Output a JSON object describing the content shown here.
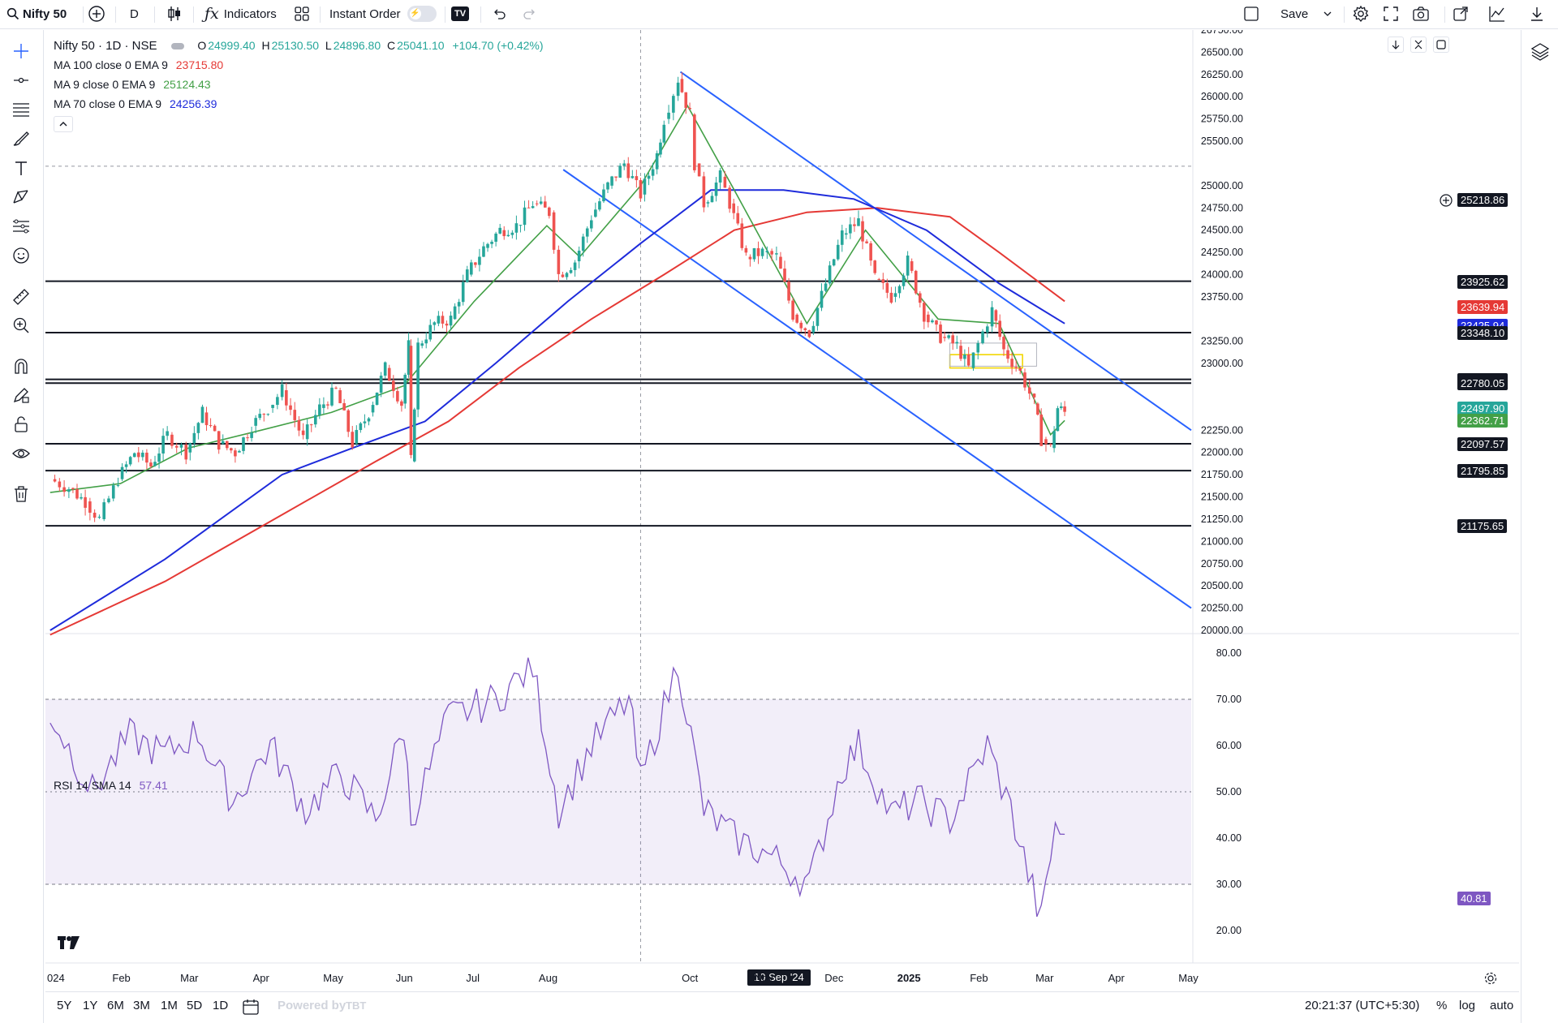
{
  "toolbar": {
    "symbol": "Nifty 50",
    "interval": "D",
    "indicators_label": "Indicators",
    "instant_order_label": "Instant Order",
    "save_label": "Save"
  },
  "legend": {
    "title": "Nifty 50 · 1D · NSE",
    "open_label": "O",
    "open": "24999.40",
    "high_label": "H",
    "high": "25130.50",
    "low_label": "L",
    "low": "24896.80",
    "close_label": "C",
    "close": "25041.10",
    "change": "+104.70 (+0.42%)",
    "ma100_label": "MA 100 close 0 EMA 9",
    "ma100_value": "23715.80",
    "ma100_color": "#e53935",
    "ma9_label": "MA 9 close 0 EMA 9",
    "ma9_value": "25124.43",
    "ma9_color": "#43a047",
    "ma70_label": "MA 70 close 0 EMA 9",
    "ma70_value": "24256.39",
    "ma70_color": "#1e2bdb",
    "rsi_label": "RSI 14 SMA 14",
    "rsi_value": "57.41",
    "rsi_color": "#7e57c2"
  },
  "price_axis": {
    "ticks": [
      "26750.00",
      "26500.00",
      "26250.00",
      "26000.00",
      "25750.00",
      "25500.00",
      "25000.00",
      "24750.00",
      "24500.00",
      "24250.00",
      "24000.00",
      "23750.00",
      "23250.00",
      "23000.00",
      "22250.00",
      "22000.00",
      "21750.00",
      "21500.00",
      "21250.00",
      "21000.00",
      "20750.00",
      "20500.00",
      "20250.00",
      "20000.00"
    ],
    "crosshair_price": "25218.86",
    "tags": [
      {
        "value": "23925.62",
        "color": "#131722"
      },
      {
        "value": "23639.94",
        "color": "#e53935"
      },
      {
        "value": "23425.94",
        "color": "#1e2bdb"
      },
      {
        "value": "23348.10",
        "color": "#131722"
      },
      {
        "value": "22822.44",
        "color": "#131722"
      },
      {
        "value": "22780.05",
        "color": "#131722"
      },
      {
        "value": "22497.90",
        "color": "#26a69a"
      },
      {
        "value": "22362.71",
        "color": "#43a047"
      },
      {
        "value": "22097.57",
        "color": "#131722"
      },
      {
        "value": "21795.85",
        "color": "#131722"
      },
      {
        "value": "21175.65",
        "color": "#131722"
      }
    ]
  },
  "rsi_axis": {
    "ticks": [
      "80.00",
      "70.00",
      "60.00",
      "50.00",
      "40.00",
      "30.00",
      "20.00"
    ],
    "current": "40.81"
  },
  "time_axis": {
    "labels": [
      "024",
      "Feb",
      "Mar",
      "Apr",
      "May",
      "Jun",
      "Jul",
      "Aug",
      "Oct",
      "Nov",
      "Dec",
      "2025",
      "Feb",
      "Mar",
      "Apr",
      "May"
    ],
    "crosshair_date": "10 Sep '24"
  },
  "bottom": {
    "ranges": [
      "5Y",
      "1Y",
      "6M",
      "3M",
      "1M",
      "5D",
      "1D"
    ],
    "powered_by": "Powered by",
    "clock": "20:21:37 (UTC+5:30)",
    "percent": "%",
    "log": "log",
    "auto": "auto"
  },
  "chart_data": {
    "type": "candlestick",
    "symbol": "Nifty 50",
    "interval": "1D",
    "ylim": [
      20000,
      26750
    ],
    "horizontal_levels": [
      23925.62,
      23348.1,
      22822.44,
      22780.05,
      22097.57,
      21795.85,
      21175.65
    ],
    "price_path": [
      [
        "2024-01-02",
        21700
      ],
      [
        "2024-01-10",
        21600
      ],
      [
        "2024-01-17",
        21450
      ],
      [
        "2024-01-23",
        21250
      ],
      [
        "2024-01-31",
        21700
      ],
      [
        "2024-02-07",
        22000
      ],
      [
        "2024-02-14",
        21850
      ],
      [
        "2024-02-21",
        22200
      ],
      [
        "2024-02-29",
        22000
      ],
      [
        "2024-03-07",
        22450
      ],
      [
        "2024-03-14",
        22100
      ],
      [
        "2024-03-21",
        22000
      ],
      [
        "2024-03-28",
        22300
      ],
      [
        "2024-04-04",
        22500
      ],
      [
        "2024-04-10",
        22700
      ],
      [
        "2024-04-19",
        22150
      ],
      [
        "2024-04-26",
        22500
      ],
      [
        "2024-05-03",
        22700
      ],
      [
        "2024-05-10",
        22100
      ],
      [
        "2024-05-17",
        22450
      ],
      [
        "2024-05-24",
        22950
      ],
      [
        "2024-05-31",
        22550
      ],
      [
        "2024-06-03",
        23200
      ],
      [
        "2024-06-04",
        21900
      ],
      [
        "2024-06-07",
        23200
      ],
      [
        "2024-06-14",
        23450
      ],
      [
        "2024-06-21",
        23500
      ],
      [
        "2024-06-28",
        24000
      ],
      [
        "2024-07-05",
        24300
      ],
      [
        "2024-07-12",
        24500
      ],
      [
        "2024-07-19",
        24550
      ],
      [
        "2024-07-26",
        24800
      ],
      [
        "2024-08-02",
        24700
      ],
      [
        "2024-08-06",
        24000
      ],
      [
        "2024-08-13",
        24150
      ],
      [
        "2024-08-20",
        24650
      ],
      [
        "2024-08-27",
        25000
      ],
      [
        "2024-09-03",
        25250
      ],
      [
        "2024-09-10",
        24900
      ],
      [
        "2024-09-17",
        25350
      ],
      [
        "2024-09-20",
        25750
      ],
      [
        "2024-09-26",
        26200
      ],
      [
        "2024-10-01",
        25800
      ],
      [
        "2024-10-03",
        25250
      ],
      [
        "2024-10-07",
        24800
      ],
      [
        "2024-10-14",
        25100
      ],
      [
        "2024-10-18",
        24800
      ],
      [
        "2024-10-25",
        24200
      ],
      [
        "2024-11-01",
        24250
      ],
      [
        "2024-11-07",
        24200
      ],
      [
        "2024-11-14",
        23550
      ],
      [
        "2024-11-21",
        23350
      ],
      [
        "2024-11-28",
        23900
      ],
      [
        "2024-12-05",
        24450
      ],
      [
        "2024-12-12",
        24600
      ],
      [
        "2024-12-19",
        23950
      ],
      [
        "2024-12-26",
        23750
      ],
      [
        "2025-01-02",
        24150
      ],
      [
        "2025-01-09",
        23550
      ],
      [
        "2025-01-16",
        23300
      ],
      [
        "2025-01-23",
        23200
      ],
      [
        "2025-01-28",
        22950
      ],
      [
        "2025-02-03",
        23350
      ],
      [
        "2025-02-07",
        23600
      ],
      [
        "2025-02-12",
        23150
      ],
      [
        "2025-02-19",
        22900
      ],
      [
        "2025-02-25",
        22550
      ],
      [
        "2025-02-28",
        22150
      ],
      [
        "2025-03-04",
        22050
      ],
      [
        "2025-03-07",
        22500
      ],
      [
        "2025-03-10",
        22450
      ]
    ],
    "series": [
      {
        "name": "MA 100 close 0 EMA 9",
        "color": "#e53935",
        "values": [
          [
            "2024-01-02",
            19950
          ],
          [
            "2024-02-20",
            20550
          ],
          [
            "2024-04-10",
            21300
          ],
          [
            "2024-05-20",
            21900
          ],
          [
            "2024-06-20",
            22350
          ],
          [
            "2024-07-20",
            22950
          ],
          [
            "2024-08-20",
            23500
          ],
          [
            "2024-09-20",
            24000
          ],
          [
            "2024-10-20",
            24500
          ],
          [
            "2024-11-20",
            24700
          ],
          [
            "2024-12-20",
            24750
          ],
          [
            "2025-01-20",
            24650
          ],
          [
            "2025-02-10",
            24250
          ],
          [
            "2025-03-10",
            23700
          ]
        ]
      },
      {
        "name": "MA 70 close 0 EMA 9",
        "color": "#1e2bdb",
        "values": [
          [
            "2024-01-02",
            20000
          ],
          [
            "2024-02-20",
            20800
          ],
          [
            "2024-04-10",
            21750
          ],
          [
            "2024-05-10",
            22050
          ],
          [
            "2024-06-10",
            22350
          ],
          [
            "2024-07-10",
            23000
          ],
          [
            "2024-08-10",
            23700
          ],
          [
            "2024-09-10",
            24350
          ],
          [
            "2024-10-10",
            24950
          ],
          [
            "2024-11-10",
            24950
          ],
          [
            "2024-12-10",
            24850
          ],
          [
            "2025-01-10",
            24500
          ],
          [
            "2025-02-10",
            23900
          ],
          [
            "2025-03-10",
            23450
          ]
        ]
      },
      {
        "name": "MA 9 close 0 EMA 9",
        "color": "#43a047",
        "values": [
          [
            "2024-01-02",
            21550
          ],
          [
            "2024-02-01",
            21650
          ],
          [
            "2024-03-01",
            22050
          ],
          [
            "2024-04-01",
            22250
          ],
          [
            "2024-05-01",
            22450
          ],
          [
            "2024-06-01",
            22750
          ],
          [
            "2024-07-01",
            23700
          ],
          [
            "2024-08-01",
            24550
          ],
          [
            "2024-08-15",
            24200
          ],
          [
            "2024-09-10",
            25000
          ],
          [
            "2024-09-30",
            25900
          ],
          [
            "2024-10-20",
            24950
          ],
          [
            "2024-11-20",
            23450
          ],
          [
            "2024-12-15",
            24500
          ],
          [
            "2025-01-15",
            23500
          ],
          [
            "2025-02-10",
            23450
          ],
          [
            "2025-03-04",
            22200
          ],
          [
            "2025-03-10",
            22360
          ]
        ]
      }
    ],
    "rsi": {
      "name": "RSI 14 SMA 14",
      "ylim": [
        20,
        80
      ],
      "band": [
        30,
        70
      ],
      "mid": 50,
      "values": [
        [
          "2024-01-02",
          67
        ],
        [
          "2024-01-20",
          50
        ],
        [
          "2024-02-05",
          62
        ],
        [
          "2024-02-20",
          58
        ],
        [
          "2024-03-05",
          63
        ],
        [
          "2024-03-20",
          48
        ],
        [
          "2024-04-05",
          60
        ],
        [
          "2024-04-20",
          46
        ],
        [
          "2024-05-05",
          54
        ],
        [
          "2024-05-20",
          44
        ],
        [
          "2024-06-01",
          64
        ],
        [
          "2024-06-04",
          44
        ],
        [
          "2024-06-20",
          66
        ],
        [
          "2024-07-10",
          70
        ],
        [
          "2024-07-26",
          77
        ],
        [
          "2024-08-06",
          46
        ],
        [
          "2024-08-20",
          60
        ],
        [
          "2024-09-05",
          70
        ],
        [
          "2024-09-10",
          52
        ],
        [
          "2024-09-26",
          78
        ],
        [
          "2024-10-07",
          46
        ],
        [
          "2024-10-20",
          40
        ],
        [
          "2024-11-05",
          36
        ],
        [
          "2024-11-21",
          30
        ],
        [
          "2024-12-05",
          55
        ],
        [
          "2024-12-12",
          60
        ],
        [
          "2024-12-26",
          45
        ],
        [
          "2025-01-06",
          48
        ],
        [
          "2025-01-20",
          44
        ],
        [
          "2025-02-05",
          60
        ],
        [
          "2025-02-15",
          46
        ],
        [
          "2025-02-28",
          22
        ],
        [
          "2025-03-06",
          43
        ],
        [
          "2025-03-10",
          40.81
        ]
      ]
    }
  }
}
